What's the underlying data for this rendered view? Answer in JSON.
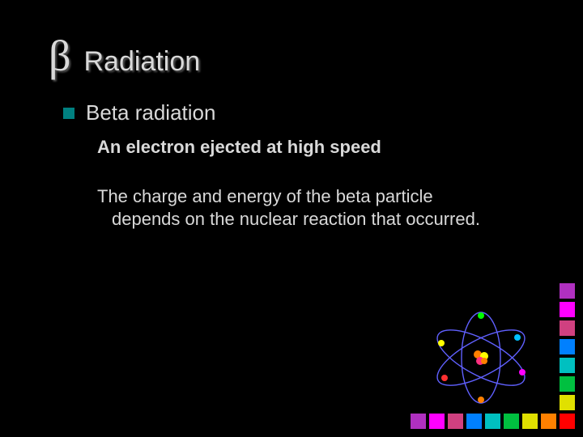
{
  "slide": {
    "beta_symbol": "β",
    "title": "Radiation",
    "bullet_label": "Beta radiation",
    "sub_bold": "An electron ejected at high speed",
    "sub_body": "The charge and energy of the beta particle depends on the nuclear reaction that occurred."
  },
  "styling": {
    "background": "#000000",
    "text_color": "#d9d9d9",
    "bullet_color": "#008080",
    "title_fontsize": 34,
    "beta_fontsize": 54,
    "bullet_fontsize": 26,
    "sub_fontsize": 22
  },
  "decor": {
    "bottom_square_colors": [
      "#b030c0",
      "#ff00ff",
      "#d04080",
      "#0080ff",
      "#00c0c0",
      "#00c040",
      "#e0e000",
      "#ff8000",
      "#ff0000"
    ],
    "right_square_colors": [
      "#b030c0",
      "#ff00ff",
      "#d04080",
      "#0080ff",
      "#00c0c0",
      "#00c040",
      "#e0e000"
    ],
    "atom": {
      "nucleus_colors": [
        "#ff8000",
        "#ffff00",
        "#ff3080"
      ],
      "orbit_color": "#6060ff",
      "electron_colors": [
        "#ffff00",
        "#ff00ff",
        "#00ff00",
        "#ff8000",
        "#00c0ff",
        "#ff3030"
      ]
    }
  }
}
